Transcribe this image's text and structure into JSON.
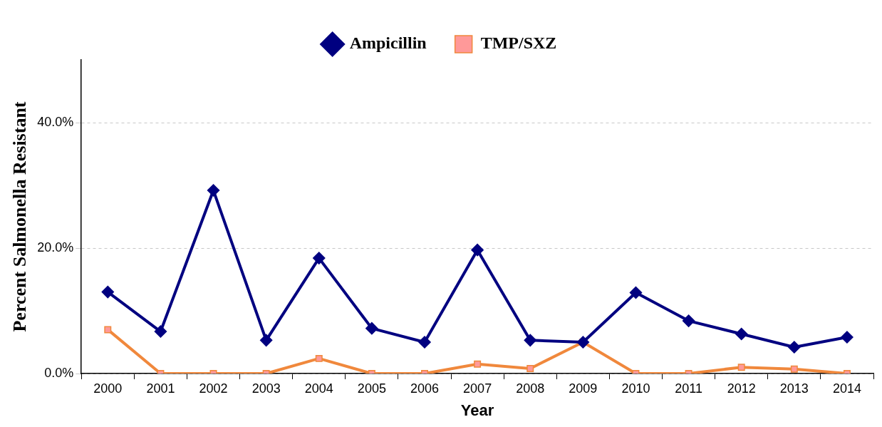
{
  "chart_data": {
    "type": "line",
    "xlabel": "Year",
    "ylabel": "Percent Salmonella Resistant",
    "categories": [
      "2000",
      "2001",
      "2002",
      "2003",
      "2004",
      "2005",
      "2006",
      "2007",
      "2008",
      "2009",
      "2010",
      "2011",
      "2012",
      "2013",
      "2014"
    ],
    "series": [
      {
        "name": "Ampicillin",
        "color": "#000080",
        "marker": "diamond",
        "values": [
          13.0,
          6.7,
          29.2,
          5.3,
          18.4,
          7.2,
          5.0,
          19.7,
          5.3,
          5.0,
          12.9,
          8.4,
          6.3,
          4.2,
          5.8
        ]
      },
      {
        "name": "TMP/SXZ",
        "color": "#f0883c",
        "marker": "square",
        "values": [
          7.0,
          0,
          0,
          0,
          2.4,
          0,
          0,
          1.5,
          0.8,
          5.0,
          0,
          0,
          1.0,
          0.7,
          0
        ]
      }
    ],
    "ylim": [
      0,
      50
    ],
    "yticks": [
      {
        "value": 0,
        "label": "0.0%"
      },
      {
        "value": 20,
        "label": "20.0%"
      },
      {
        "value": 40,
        "label": "40.0%"
      }
    ],
    "grid": "y",
    "legend": "top",
    "line_style": "solid"
  }
}
